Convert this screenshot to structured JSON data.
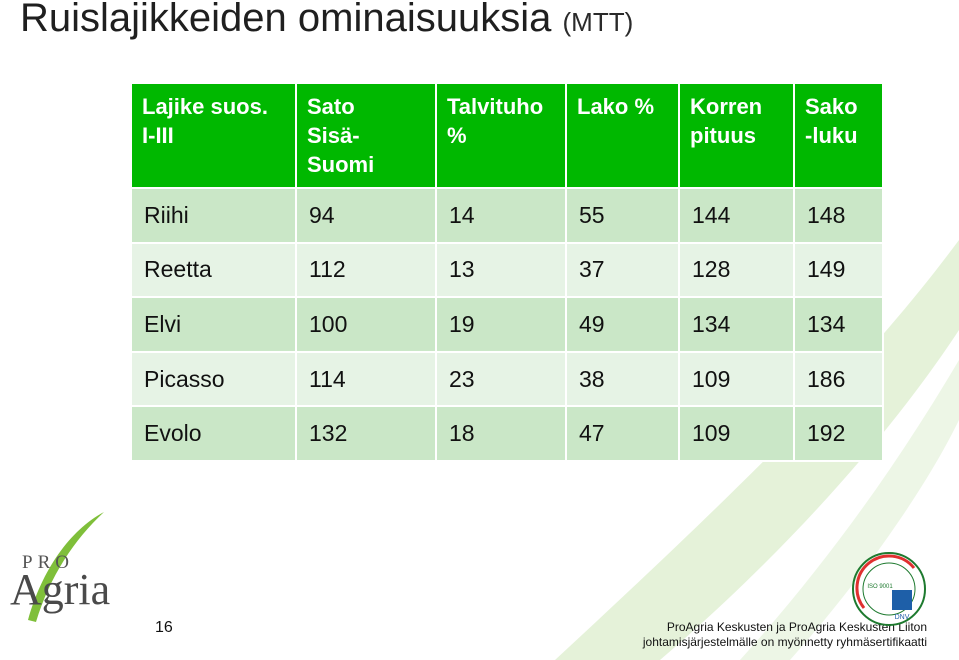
{
  "title": {
    "main": "Ruislajikkeiden ominaisuuksia",
    "sub": "(MTT)"
  },
  "table": {
    "headers": [
      [
        "Lajike suos.",
        "I-III"
      ],
      [
        "Sato",
        "Sisä-",
        "Suomi"
      ],
      [
        "Talvituho",
        "%"
      ],
      [
        "Lako %"
      ],
      [
        "Korren",
        "pituus"
      ],
      [
        "Sako",
        "-luku"
      ]
    ],
    "rows": [
      [
        "Riihi",
        "94",
        "14",
        "55",
        "144",
        "148"
      ],
      [
        "Reetta",
        "112",
        "13",
        "37",
        "128",
        "149"
      ],
      [
        "Elvi",
        "100",
        "19",
        "49",
        "134",
        "134"
      ],
      [
        "Picasso",
        "114",
        "23",
        "38",
        "109",
        "186"
      ],
      [
        "Evolo",
        "132",
        "18",
        "47",
        "109",
        "192"
      ]
    ]
  },
  "logo": {
    "pro": "PRO",
    "agria": "Agria"
  },
  "page_number": "16",
  "footer": {
    "line1": "ProAgria Keskusten ja ProAgria Keskusten Liiton",
    "line2": "johtamisjärjestelmälle on myönnetty ryhmäsertifikaatti"
  },
  "certificate": {
    "ring_text": "SERTIFIOITU LAATUJÄRJESTELMÄ",
    "iso": "ISO 9001",
    "badge": "DNV"
  },
  "colors": {
    "header_green": "#00b800",
    "row_dark": "#cae7c7",
    "row_light": "#e6f3e5",
    "swoosh": "#e3f1d6"
  }
}
